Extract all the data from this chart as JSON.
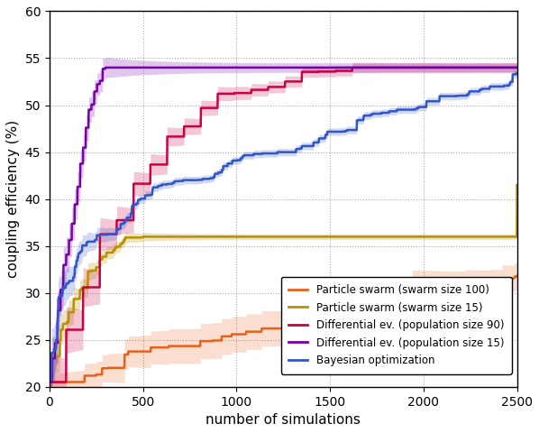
{
  "xlabel": "number of simulations",
  "ylabel": "coupling efficiency (%)",
  "xlim": [
    0,
    2500
  ],
  "ylim": [
    20,
    60
  ],
  "yticks": [
    20,
    25,
    30,
    35,
    40,
    45,
    50,
    55,
    60
  ],
  "xticks": [
    0,
    500,
    1000,
    1500,
    2000,
    2500
  ],
  "series": {
    "ps100": {
      "label": "Particle swarm (swarm size 100)",
      "color": "#e8601c",
      "alpha_fill": 0.2,
      "band_alpha": 0.18
    },
    "ps15": {
      "label": "Particle swarm (swarm size 15)",
      "color": "#b89000",
      "alpha_fill": 0.25,
      "band_alpha": 0.2
    },
    "de90": {
      "label": "Differential ev. (population size 90)",
      "color": "#cc0044",
      "alpha_fill": 0.22,
      "band_alpha": 0.18
    },
    "de15": {
      "label": "Differential ev. (population size 15)",
      "color": "#7700aa",
      "alpha_fill": 0.22,
      "band_alpha": 0.18
    },
    "bayes": {
      "label": "Bayesian optimization",
      "color": "#3355cc",
      "alpha_fill": 0.22,
      "band_alpha": 0.18
    }
  },
  "legend_loc": "lower center",
  "figsize": [
    5.98,
    4.8
  ],
  "dpi": 100
}
